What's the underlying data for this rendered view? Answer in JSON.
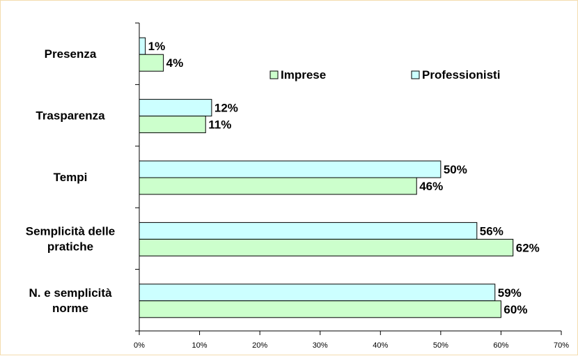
{
  "chart_data": {
    "type": "bar",
    "orientation": "horizontal",
    "categories": [
      [
        "Presenza"
      ],
      [
        "Trasparenza"
      ],
      [
        "Tempi"
      ],
      [
        "Semplicità delle",
        "pratiche"
      ],
      [
        "N. e semplicità",
        "norme"
      ]
    ],
    "series": [
      {
        "name": "Professionisti",
        "color": "#ccffff",
        "values": [
          1,
          12,
          50,
          56,
          59
        ],
        "labels": [
          "1%",
          "12%",
          "50%",
          "56%",
          "59%"
        ]
      },
      {
        "name": "Imprese",
        "color": "#ccffcc",
        "values": [
          4,
          11,
          46,
          62,
          60
        ],
        "labels": [
          "4%",
          "11%",
          "46%",
          "62%",
          "60%"
        ]
      }
    ],
    "xlim": [
      0,
      70
    ],
    "x_ticks": [
      "0%",
      "10%",
      "20%",
      "30%",
      "40%",
      "50%",
      "60%",
      "70%"
    ],
    "legend": {
      "placement": "top-right",
      "order": [
        "Imprese",
        "Professionisti"
      ]
    },
    "grid": false
  }
}
